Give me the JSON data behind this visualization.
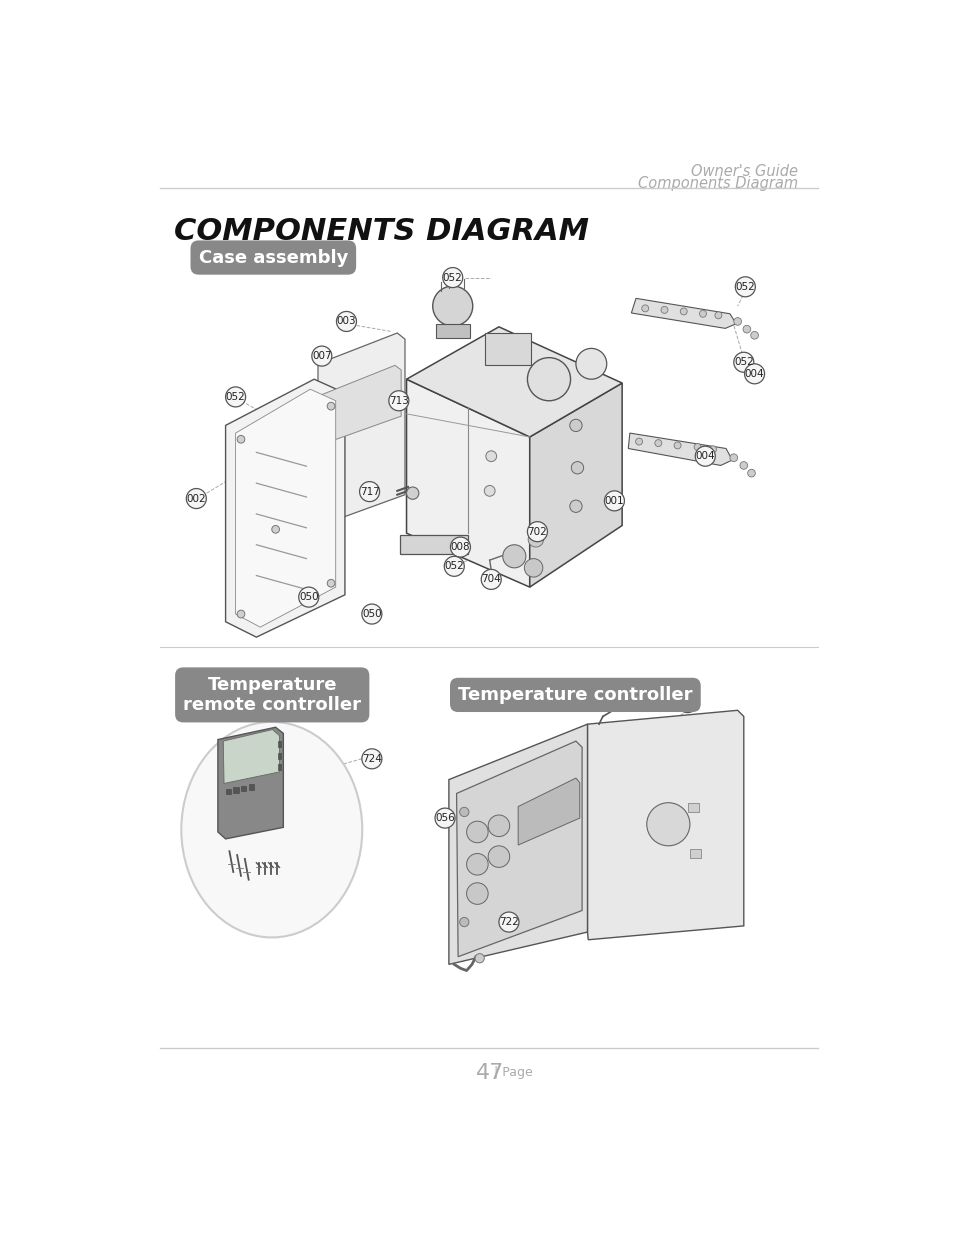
{
  "page_title": "COMPONENTS DIAGRAM",
  "header_right_line1": "Owner's Guide",
  "header_right_line2": "Components Diagram",
  "footer_text": "47",
  "footer_suffix": "| Page",
  "section1_label": "Case assembly",
  "section2_label": "Temperature\nremote controller",
  "section3_label": "Temperature controller",
  "bg_color": "#ffffff"
}
